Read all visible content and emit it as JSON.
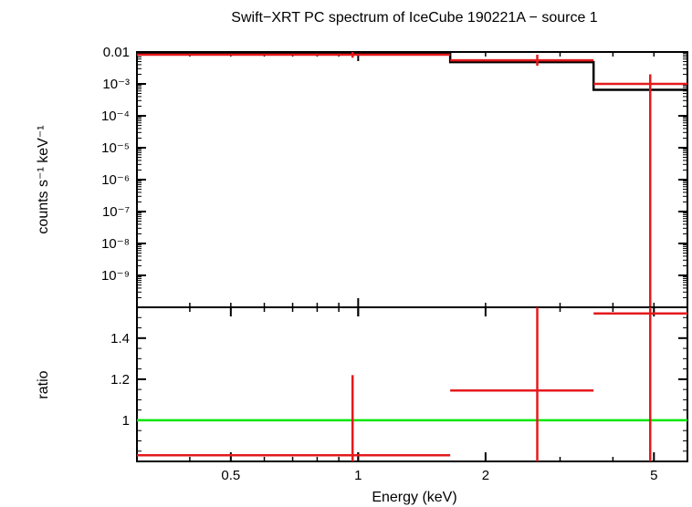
{
  "chart_data": [
    {
      "panel": "spectrum",
      "type": "scatter",
      "title": "Swift−XRT PC spectrum of IceCube 190221A − source 1",
      "xlabel": "",
      "ylabel": "counts s⁻¹ keV⁻¹",
      "x_scale": "log",
      "y_scale": "log",
      "xlim": [
        0.3,
        6.0
      ],
      "ylim": [
        1e-10,
        0.01
      ],
      "y_ticks": [
        {
          "value": 0.01,
          "label": "0.01"
        },
        {
          "value": 0.001,
          "label": "10⁻³"
        },
        {
          "value": 0.0001,
          "label": "10⁻⁴"
        },
        {
          "value": 1e-05,
          "label": "10⁻⁵"
        },
        {
          "value": 1e-06,
          "label": "10⁻⁶"
        },
        {
          "value": 1e-07,
          "label": "10⁻⁷"
        },
        {
          "value": 1e-08,
          "label": "10⁻⁸"
        },
        {
          "value": 1e-09,
          "label": "10⁻⁹"
        }
      ],
      "data_points": [
        {
          "x": 0.97,
          "x_low": 0.3,
          "x_high": 1.65,
          "y": 0.0082,
          "y_err_low": 0.0066,
          "y_err_high": 0.0103
        },
        {
          "x": 2.65,
          "x_low": 1.65,
          "x_high": 3.6,
          "y": 0.0055,
          "y_err_low": 0.0037,
          "y_err_high": 0.0082
        },
        {
          "x": 4.9,
          "x_low": 3.6,
          "x_high": 6.0,
          "y": 0.001,
          "y_err_low": 1e-10,
          "y_err_high": 0.002
        }
      ],
      "model": [
        {
          "x_low": 0.3,
          "x_high": 1.65,
          "y": 0.0095
        },
        {
          "x_low": 1.65,
          "x_high": 3.6,
          "y": 0.0048
        },
        {
          "x_low": 3.6,
          "x_high": 6.0,
          "y": 0.00065
        }
      ],
      "colors": {
        "data": "#e41a1c",
        "model": "#000000",
        "frame": "#000000"
      }
    },
    {
      "panel": "ratio",
      "type": "scatter",
      "xlabel": "Energy (keV)",
      "ylabel": "ratio",
      "x_scale": "log",
      "xlim": [
        0.3,
        6.0
      ],
      "ylim": [
        0.8,
        1.55
      ],
      "x_ticks": [
        {
          "value": 0.5,
          "label": "0.5"
        },
        {
          "value": 1,
          "label": "1"
        },
        {
          "value": 2,
          "label": "2"
        },
        {
          "value": 5,
          "label": "5"
        }
      ],
      "y_ticks": [
        {
          "value": 1,
          "label": "1"
        },
        {
          "value": 1.2,
          "label": "1.2"
        },
        {
          "value": 1.4,
          "label": "1.4"
        }
      ],
      "reference_line": {
        "y": 1,
        "color": "#00e600"
      },
      "data_points": [
        {
          "x": 0.97,
          "x_low": 0.3,
          "x_high": 1.65,
          "y": 0.83,
          "y_err_low": 0.8,
          "y_err_high": 1.22
        },
        {
          "x": 2.65,
          "x_low": 1.65,
          "x_high": 3.6,
          "y": 1.145,
          "y_err_low": 0.8,
          "y_err_high": 1.55
        },
        {
          "x": 4.9,
          "x_low": 3.6,
          "x_high": 6.0,
          "y": 1.52,
          "y_err_low": 0.8,
          "y_err_high": 1.55
        }
      ],
      "colors": {
        "data": "#e41a1c"
      }
    }
  ]
}
